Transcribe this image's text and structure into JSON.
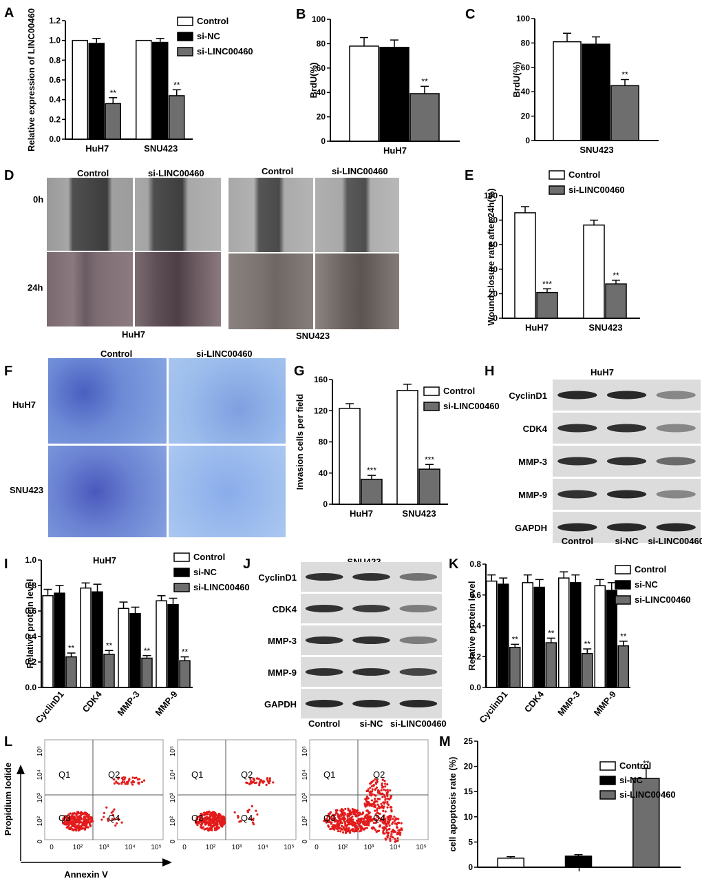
{
  "colors": {
    "control": "#ffffff",
    "si_nc": "#000000",
    "si_linc": "#6e6e6e",
    "stain": "#6f9ad6",
    "dot": "#e31b1b",
    "blot_bg": "#dcdcdc",
    "band": "#1e1e1e"
  },
  "panels": {
    "A": {
      "letter": "A"
    },
    "B": {
      "letter": "B"
    },
    "C": {
      "letter": "C"
    },
    "D": {
      "letter": "D",
      "col_labels": [
        "Control",
        "si-LINC00460",
        "Control",
        "si-LINC00460"
      ],
      "row_labels": [
        "0h",
        "24h"
      ],
      "group_labels": [
        "HuH7",
        "SNU423"
      ]
    },
    "E": {
      "letter": "E"
    },
    "F": {
      "letter": "F",
      "col_labels": [
        "Control",
        "si-LINC00460"
      ],
      "row_labels": [
        "HuH7",
        "SNU423"
      ]
    },
    "G": {
      "letter": "G"
    },
    "H": {
      "letter": "H",
      "title": "HuH7",
      "proteins": [
        "CyclinD1",
        "CDK4",
        "MMP-3",
        "MMP-9",
        "GAPDH"
      ],
      "lanes": [
        "Control",
        "si-NC",
        "si-LINC00460"
      ]
    },
    "I": {
      "letter": "I"
    },
    "J": {
      "letter": "J",
      "title": "SNU423",
      "proteins": [
        "CyclinD1",
        "CDK4",
        "MMP-3",
        "MMP-9",
        "GAPDH"
      ],
      "lanes": [
        "Control",
        "si-NC",
        "si-LINC00460"
      ]
    },
    "K": {
      "letter": "K"
    },
    "L": {
      "letter": "L",
      "ylabel": "Propidium Iodide",
      "xlabel": "Annexin V",
      "quadrants": [
        "Q1",
        "Q2",
        "Q3",
        "Q4"
      ],
      "ticks": [
        "0",
        "10²",
        "10³",
        "10⁴",
        "10⁵"
      ]
    },
    "M": {
      "letter": "M"
    }
  },
  "chart_data": [
    {
      "id": "A",
      "type": "bar",
      "categories": [
        "HuH7",
        "SNU423"
      ],
      "series": [
        {
          "name": "Control",
          "values": [
            1.0,
            1.0
          ],
          "errors": [
            0,
            0
          ]
        },
        {
          "name": "si-NC",
          "values": [
            0.97,
            0.98
          ],
          "errors": [
            0.05,
            0.04
          ]
        },
        {
          "name": "si-LINC00460",
          "values": [
            0.36,
            0.44
          ],
          "errors": [
            0.06,
            0.06
          ]
        }
      ],
      "significance": [
        "",
        "",
        "**",
        "",
        "",
        "**"
      ],
      "ylabel": "Relative expression of LINC00460",
      "ylim": [
        0,
        1.2
      ],
      "yticks": [
        "0.0",
        "0.2",
        "0.4",
        "0.6",
        "0.8",
        "1.0",
        "1.2"
      ],
      "legend": "top-right"
    },
    {
      "id": "B",
      "type": "bar",
      "categories": [
        "HuH7"
      ],
      "series": [
        {
          "name": "Control",
          "values": [
            78
          ],
          "errors": [
            7
          ]
        },
        {
          "name": "si-NC",
          "values": [
            77
          ],
          "errors": [
            6
          ]
        },
        {
          "name": "si-LINC00460",
          "values": [
            39
          ],
          "errors": [
            6
          ]
        }
      ],
      "significance": [
        "",
        "",
        "**"
      ],
      "ylabel": "BrdU(%)",
      "ylim": [
        0,
        100
      ],
      "yticks": [
        "0",
        "20",
        "40",
        "60",
        "80",
        "100"
      ]
    },
    {
      "id": "C",
      "type": "bar",
      "categories": [
        "SNU423"
      ],
      "series": [
        {
          "name": "Control",
          "values": [
            81
          ],
          "errors": [
            7
          ]
        },
        {
          "name": "si-NC",
          "values": [
            79
          ],
          "errors": [
            6
          ]
        },
        {
          "name": "si-LINC00460",
          "values": [
            45
          ],
          "errors": [
            5
          ]
        }
      ],
      "significance": [
        "",
        "",
        "**"
      ],
      "ylabel": "BrdU(%)",
      "ylim": [
        0,
        100
      ],
      "yticks": [
        "0",
        "20",
        "40",
        "60",
        "80",
        "100"
      ]
    },
    {
      "id": "E",
      "type": "bar",
      "categories": [
        "HuH7",
        "SNU423"
      ],
      "series": [
        {
          "name": "Control",
          "values": [
            86,
            76
          ],
          "errors": [
            5,
            4
          ]
        },
        {
          "name": "si-LINC00460",
          "values": [
            21,
            28
          ],
          "errors": [
            3,
            3
          ]
        }
      ],
      "significance": [
        "",
        "***",
        "",
        "**"
      ],
      "ylabel": "Wound closure rate after 24h(%)",
      "ylim": [
        0,
        100
      ],
      "yticks": [
        "0",
        "20",
        "40",
        "60",
        "80",
        "100"
      ],
      "legend": "top"
    },
    {
      "id": "G",
      "type": "bar",
      "categories": [
        "HuH7",
        "SNU423"
      ],
      "series": [
        {
          "name": "Control",
          "values": [
            123,
            146
          ],
          "errors": [
            6,
            8
          ]
        },
        {
          "name": "si-LINC00460",
          "values": [
            32,
            45
          ],
          "errors": [
            5,
            6
          ]
        }
      ],
      "significance": [
        "",
        "***",
        "",
        "***"
      ],
      "ylabel": "Invasion cells per field",
      "ylim": [
        0,
        160
      ],
      "yticks": [
        "0",
        "40",
        "80",
        "120",
        "160"
      ],
      "legend": "top-right"
    },
    {
      "id": "I",
      "type": "bar",
      "title": "HuH7",
      "categories": [
        "CyclinD1",
        "CDK4",
        "MMP-3",
        "MMP-9"
      ],
      "series": [
        {
          "name": "Control",
          "values": [
            0.72,
            0.78,
            0.62,
            0.68
          ],
          "errors": [
            0.05,
            0.04,
            0.05,
            0.04
          ]
        },
        {
          "name": "si-NC",
          "values": [
            0.74,
            0.75,
            0.58,
            0.65
          ],
          "errors": [
            0.06,
            0.06,
            0.05,
            0.05
          ]
        },
        {
          "name": "si-LINC00460",
          "values": [
            0.24,
            0.26,
            0.23,
            0.21
          ],
          "errors": [
            0.03,
            0.03,
            0.02,
            0.03
          ]
        }
      ],
      "significance": [
        "**",
        "**",
        "**",
        "**"
      ],
      "ylabel": "Relative protein level",
      "ylim": [
        0,
        1.0
      ],
      "yticks": [
        "0.0",
        "0.2",
        "0.4",
        "0.6",
        "0.8",
        "1.0"
      ],
      "legend": "top-right"
    },
    {
      "id": "K",
      "type": "bar",
      "categories": [
        "CyclinD1",
        "CDK4",
        "MMP-3",
        "MMP-9"
      ],
      "series": [
        {
          "name": "Control",
          "values": [
            0.69,
            0.68,
            0.71,
            0.66
          ],
          "errors": [
            0.04,
            0.05,
            0.04,
            0.04
          ]
        },
        {
          "name": "si-NC",
          "values": [
            0.67,
            0.65,
            0.68,
            0.63
          ],
          "errors": [
            0.04,
            0.05,
            0.05,
            0.05
          ]
        },
        {
          "name": "si-LINC00460",
          "values": [
            0.26,
            0.29,
            0.22,
            0.27
          ],
          "errors": [
            0.02,
            0.03,
            0.03,
            0.03
          ]
        }
      ],
      "significance": [
        "**",
        "**",
        "**",
        "**"
      ],
      "ylabel": "Relative protein level",
      "ylim": [
        0,
        0.8
      ],
      "yticks": [
        "0.0",
        "0.2",
        "0.4",
        "0.6",
        "0.8"
      ],
      "legend": "top-right"
    },
    {
      "id": "M",
      "type": "bar",
      "categories": [
        "Control",
        "si-NC",
        "si-LINC00460"
      ],
      "values": [
        1.8,
        2.2,
        17.6
      ],
      "errors": [
        0.3,
        0.3,
        2.0
      ],
      "significance": [
        "",
        "",
        "**"
      ],
      "ylabel": "cell apoptosis rate (%)",
      "ylim": [
        0,
        25
      ],
      "yticks": [
        "0",
        "5",
        "10",
        "15",
        "20",
        "25"
      ],
      "legend": "top-right"
    }
  ]
}
